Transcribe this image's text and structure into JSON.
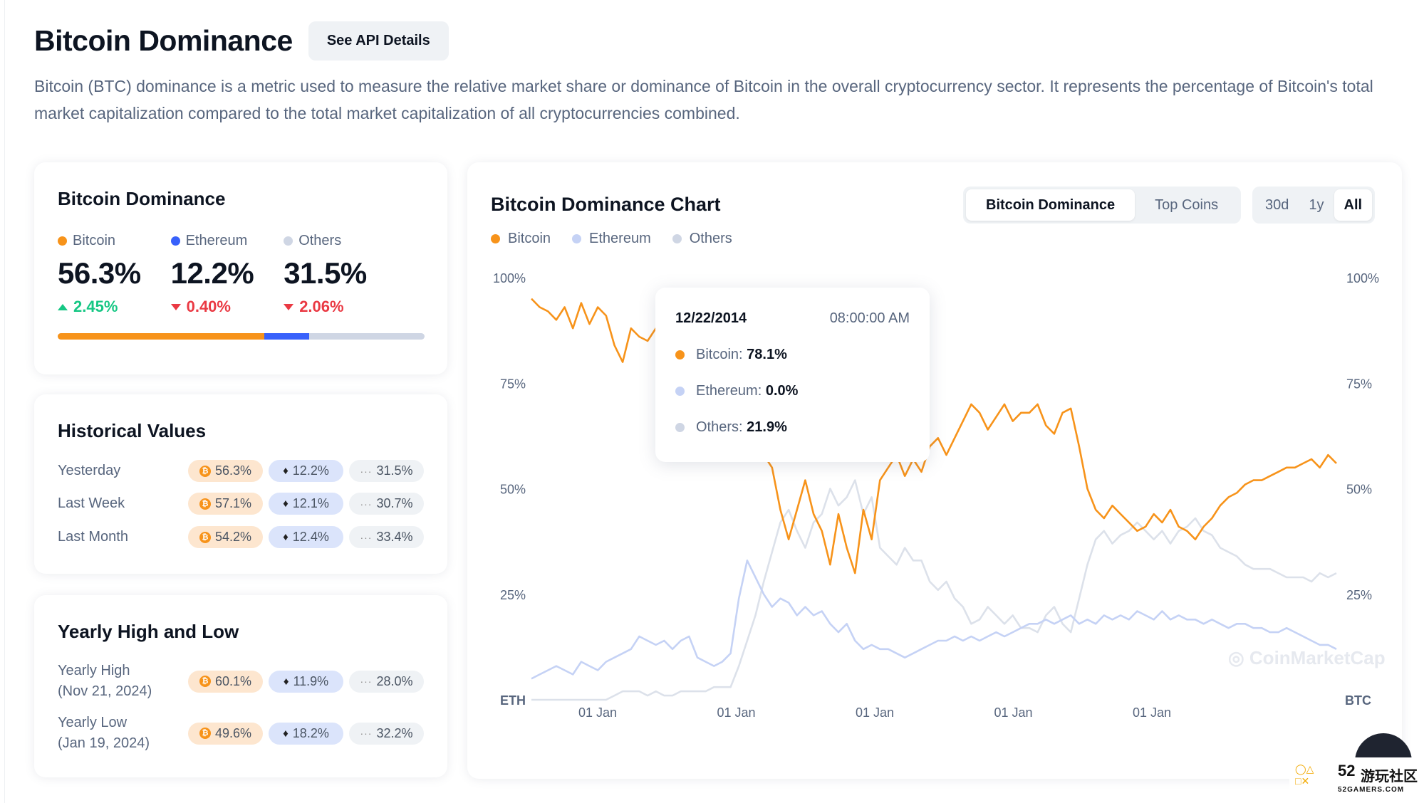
{
  "header": {
    "title": "Bitcoin Dominance",
    "api_button": "See API Details"
  },
  "description": "Bitcoin (BTC) dominance is a metric used to measure the relative market share or dominance of Bitcoin in the overall cryptocurrency sector. It represents the percentage of Bitcoin's total market capitalization compared to the total market capitalization of all cryptocurrencies combined.",
  "colors": {
    "bitcoin": "#f7931a",
    "ethereum": "#3861fb",
    "ethereum_light": "#c5d2f5",
    "others": "#cfd6e4",
    "up": "#16c784",
    "down": "#ea3943"
  },
  "dominance": {
    "title": "Bitcoin Dominance",
    "items": [
      {
        "label": "Bitcoin",
        "value": "56.3%",
        "change": "2.45%",
        "direction": "up"
      },
      {
        "label": "Ethereum",
        "value": "12.2%",
        "change": "0.40%",
        "direction": "down"
      },
      {
        "label": "Others",
        "value": "31.5%",
        "change": "2.06%",
        "direction": "down"
      }
    ],
    "bar_share": {
      "bitcoin": 56.3,
      "ethereum": 12.2,
      "others": 31.5
    }
  },
  "historical": {
    "title": "Historical Values",
    "rows": [
      {
        "label": "Yesterday",
        "btc": "56.3%",
        "eth": "12.2%",
        "others": "31.5%"
      },
      {
        "label": "Last Week",
        "btc": "57.1%",
        "eth": "12.1%",
        "others": "30.7%"
      },
      {
        "label": "Last Month",
        "btc": "54.2%",
        "eth": "12.4%",
        "others": "33.4%"
      }
    ]
  },
  "yearly": {
    "title": "Yearly High and Low",
    "rows": [
      {
        "label": "Yearly High",
        "date": "(Nov 21, 2024)",
        "btc": "60.1%",
        "eth": "11.9%",
        "others": "28.0%"
      },
      {
        "label": "Yearly Low",
        "date": "(Jan 19, 2024)",
        "btc": "49.6%",
        "eth": "18.2%",
        "others": "32.2%"
      }
    ]
  },
  "chart_panel": {
    "title": "Bitcoin Dominance Chart",
    "tabs": [
      "Bitcoin Dominance",
      "Top Coins"
    ],
    "active_tab": "Bitcoin Dominance",
    "ranges": [
      "30d",
      "1y",
      "All"
    ],
    "active_range": "All",
    "legend": [
      "Bitcoin",
      "Ethereum",
      "Others"
    ],
    "watermark": "CoinMarketCap",
    "tooltip": {
      "date": "12/22/2014",
      "time": "08:00:00 AM",
      "rows": [
        {
          "label": "Bitcoin:",
          "value": "78.1%"
        },
        {
          "label": "Ethereum:",
          "value": "0.0%"
        },
        {
          "label": "Others:",
          "value": "21.9%"
        }
      ]
    }
  },
  "chart_data": {
    "type": "line",
    "y_ticks_left": [
      "100%",
      "75%",
      "50%",
      "25%"
    ],
    "y_ticks_right": [
      "100%",
      "75%",
      "50%",
      "25%"
    ],
    "ylim": [
      0,
      100
    ],
    "left_axis_label": "ETH",
    "right_axis_label": "BTC",
    "x_tick_labels": [
      "01 Jan",
      "01 Jan",
      "01 Jan",
      "01 Jan",
      "01 Jan"
    ],
    "series": [
      {
        "name": "Bitcoin",
        "color": "#f7931a",
        "values": [
          95,
          93,
          92,
          90,
          93,
          88,
          94,
          89,
          93,
          91,
          84,
          80,
          88,
          86,
          85,
          88,
          85,
          87,
          86,
          88,
          87,
          85,
          84,
          82,
          85,
          80,
          70,
          63,
          58,
          55,
          45,
          38,
          45,
          52,
          44,
          40,
          32,
          44,
          36,
          30,
          45,
          38,
          52,
          55,
          58,
          53,
          57,
          54,
          60,
          62,
          58,
          62,
          66,
          70,
          68,
          64,
          67,
          70,
          66,
          68,
          68,
          70,
          65,
          63,
          68,
          69,
          60,
          50,
          45,
          43,
          46,
          44,
          42,
          40,
          41,
          44,
          42,
          45,
          41,
          40,
          38,
          41,
          43,
          46,
          48,
          49,
          51,
          52,
          52,
          53,
          54,
          55,
          55,
          56,
          57,
          55,
          58,
          56
        ]
      },
      {
        "name": "Ethereum",
        "color": "#c5d2f5",
        "values": [
          5,
          6,
          7,
          8,
          7,
          6,
          9,
          8,
          7,
          9,
          10,
          11,
          12,
          15,
          14,
          13,
          14,
          12,
          14,
          15,
          10,
          9,
          8,
          9,
          11,
          24,
          33,
          29,
          25,
          22,
          24,
          23,
          20,
          22,
          20,
          21,
          18,
          16,
          18,
          14,
          12,
          13,
          12,
          12,
          11,
          10,
          11,
          12,
          13,
          14,
          14,
          15,
          14,
          15,
          14,
          15,
          16,
          15,
          16,
          17,
          18,
          18,
          19,
          18,
          19,
          20,
          18,
          19,
          18,
          20,
          19,
          20,
          19,
          21,
          20,
          19,
          21,
          19,
          20,
          19,
          19,
          18,
          19,
          18,
          17,
          18,
          18,
          17,
          17,
          16,
          16,
          17,
          16,
          15,
          14,
          13,
          13,
          12
        ]
      },
      {
        "name": "Others",
        "color": "#dce1ea",
        "values": [
          0,
          0,
          0,
          0,
          0,
          0,
          0,
          0,
          0,
          0,
          1,
          2,
          2,
          2,
          1,
          2,
          1,
          1,
          2,
          2,
          2,
          2,
          3,
          3,
          3,
          8,
          14,
          20,
          28,
          35,
          42,
          45,
          40,
          36,
          42,
          44,
          50,
          46,
          48,
          52,
          44,
          48,
          36,
          34,
          32,
          36,
          33,
          33,
          28,
          26,
          28,
          24,
          22,
          18,
          19,
          22,
          20,
          18,
          20,
          17,
          17,
          16,
          20,
          22,
          18,
          16,
          24,
          32,
          38,
          40,
          37,
          39,
          40,
          42,
          40,
          38,
          40,
          37,
          40,
          41,
          43,
          40,
          39,
          36,
          35,
          34,
          32,
          31,
          31,
          31,
          30,
          29,
          29,
          29,
          28,
          30,
          29,
          30
        ]
      }
    ]
  }
}
